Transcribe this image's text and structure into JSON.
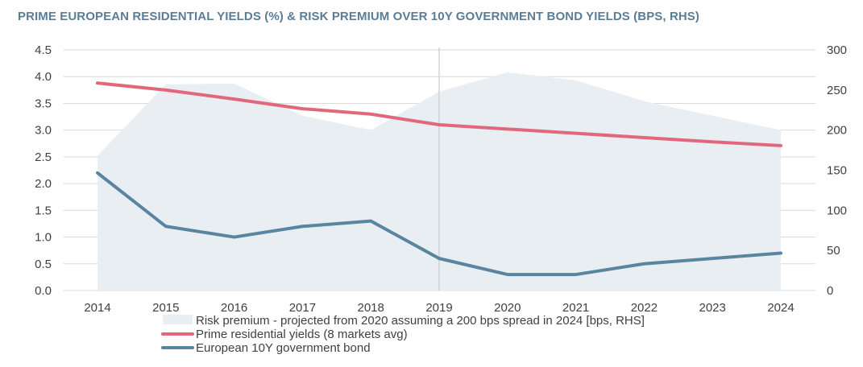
{
  "title": "PRIME EUROPEAN RESIDENTIAL YIELDS (%) & RISK PREMIUM OVER 10Y GOVERNMENT BOND YIELDS (BPS, RHS)",
  "colors": {
    "title": "#5a7d96",
    "area": "#e9eef3",
    "prime": "#e0687a",
    "govbond": "#5a85a1",
    "grid": "#d9d9d9",
    "marker": "#cccccc",
    "text": "#404040"
  },
  "chart_data": {
    "type": "line",
    "title": "PRIME EUROPEAN RESIDENTIAL YIELDS (%) & RISK PREMIUM OVER 10Y GOVERNMENT BOND YIELDS (BPS, RHS)",
    "categories": [
      "2014",
      "2015",
      "2016",
      "2017",
      "2018",
      "2019",
      "2020",
      "2021",
      "2022",
      "2023",
      "2024"
    ],
    "y_left": {
      "ylim": [
        0,
        4.5
      ],
      "ticks": [
        "0.0",
        "0.5",
        "1.0",
        "1.5",
        "2.0",
        "2.5",
        "3.0",
        "3.5",
        "4.0",
        "4.5"
      ]
    },
    "y_right": {
      "ylim": [
        0,
        300
      ],
      "ticks": [
        "0",
        "50",
        "100",
        "150",
        "200",
        "250",
        "300"
      ]
    },
    "grid": true,
    "vertical_marker_category": "2019",
    "series": [
      {
        "name": "Risk premium - projected from 2020 assuming a 200 bps spread in 2024 [bps, RHS]",
        "type": "area",
        "axis": "right",
        "values": [
          168,
          257,
          258,
          218,
          200,
          248,
          272,
          262,
          236,
          218,
          200
        ]
      },
      {
        "name": "Prime residential yields (8 markets avg)",
        "type": "line",
        "axis": "left",
        "values": [
          3.88,
          3.75,
          3.58,
          3.4,
          3.3,
          3.1,
          3.02,
          2.94,
          2.86,
          2.78,
          2.71
        ]
      },
      {
        "name": "European 10Y government bond",
        "type": "line",
        "axis": "left",
        "values": [
          2.2,
          1.2,
          1.0,
          1.2,
          1.3,
          0.6,
          0.3,
          0.3,
          0.5,
          0.6,
          0.7
        ]
      }
    ],
    "legend": "bottom"
  }
}
